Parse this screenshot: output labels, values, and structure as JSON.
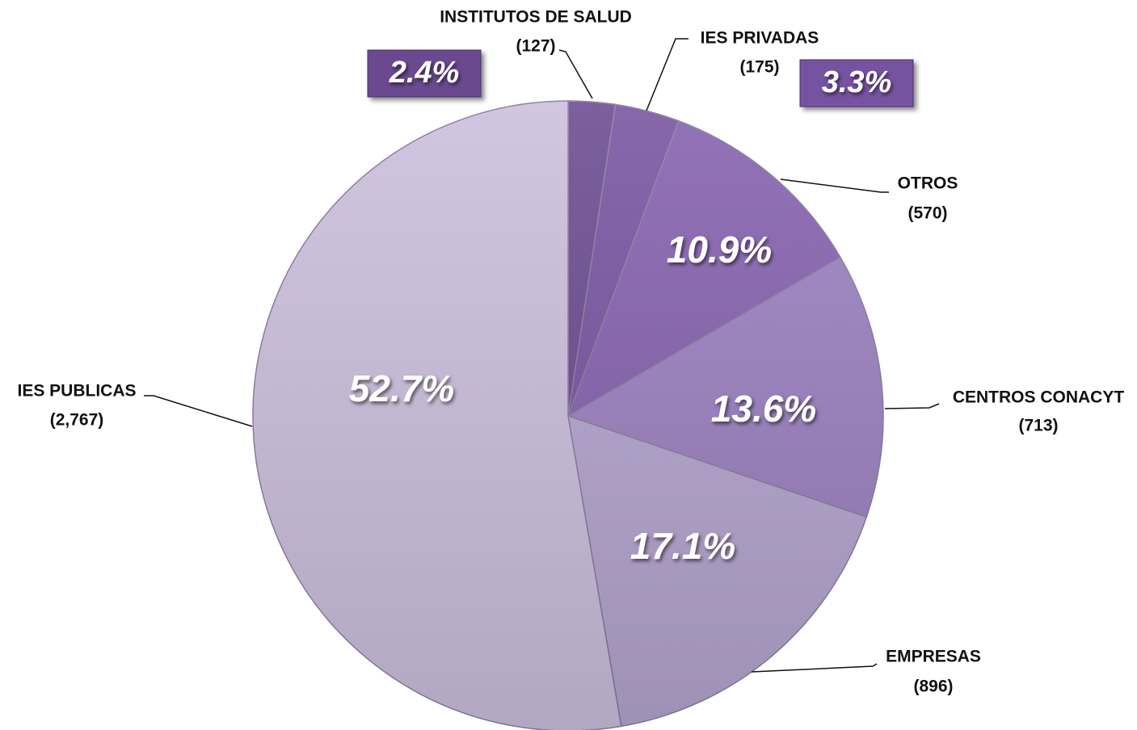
{
  "chart_data": {
    "type": "pie",
    "categories": [
      "INSTITUTOS DE SALUD",
      "IES PRIVADAS",
      "OTROS",
      "CENTROS CONACYT",
      "EMPRESAS",
      "IES PUBLICAS"
    ],
    "values": [
      2.4,
      3.3,
      10.9,
      13.6,
      17.1,
      52.7
    ],
    "value_labels": [
      "2.4%",
      "3.3%",
      "10.9%",
      "13.6%",
      "17.1%",
      "52.7%"
    ],
    "counts": [
      {
        "value": 127,
        "label": "(127)"
      },
      {
        "value": 175,
        "label": "(175)"
      },
      {
        "value": 570,
        "label": "(570)"
      },
      {
        "value": 713,
        "label": "(713)"
      },
      {
        "value": 896,
        "label": "(896)"
      },
      {
        "value": 2767,
        "label": "(2,767)"
      }
    ],
    "colors": [
      "#6a4a90",
      "#7653a0",
      "#8560ae",
      "#9a80bf",
      "#b5a4cf",
      "#cbbedc"
    ]
  }
}
